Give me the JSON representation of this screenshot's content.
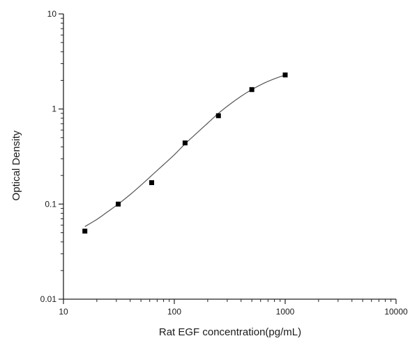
{
  "chart_data": {
    "type": "scatter",
    "title": "",
    "xlabel": "Rat EGF concentration(pg/mL)",
    "ylabel": "Optical Density",
    "x_scale": "log",
    "y_scale": "log",
    "xlim": [
      10,
      10000
    ],
    "ylim": [
      0.01,
      10
    ],
    "x_ticks": [
      10,
      100,
      1000,
      10000
    ],
    "x_tick_labels": [
      "10",
      "100",
      "1000",
      "10000"
    ],
    "y_ticks": [
      0.01,
      0.1,
      1,
      10
    ],
    "y_tick_labels": [
      "0.01",
      "0.1",
      "1",
      "10"
    ],
    "grid": false,
    "legend": "none",
    "series": [
      {
        "marker": "square",
        "color": "#000000",
        "x": [
          15.6,
          31.2,
          62.5,
          125,
          250,
          500,
          1000
        ],
        "y": [
          0.052,
          0.1,
          0.168,
          0.44,
          0.85,
          1.6,
          2.28
        ]
      }
    ],
    "fit_curve": {
      "color": "#555555",
      "x": [
        15.6,
        20,
        25,
        31.2,
        40,
        50,
        62.5,
        80,
        100,
        125,
        160,
        200,
        250,
        320,
        400,
        500,
        650,
        800,
        1000
      ],
      "y": [
        0.058,
        0.069,
        0.083,
        0.1,
        0.126,
        0.158,
        0.2,
        0.26,
        0.33,
        0.43,
        0.56,
        0.71,
        0.9,
        1.13,
        1.36,
        1.6,
        1.88,
        2.08,
        2.28
      ]
    }
  }
}
